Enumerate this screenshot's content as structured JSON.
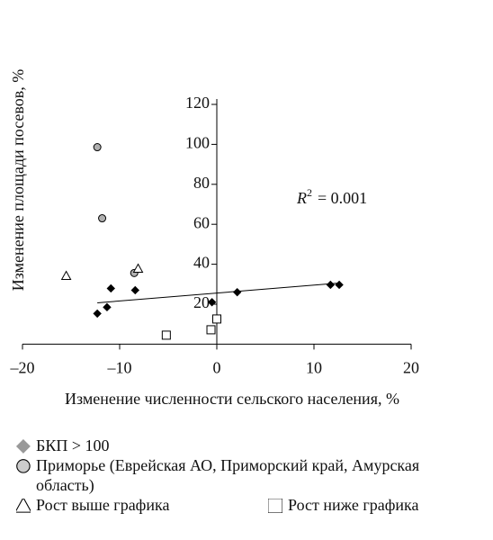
{
  "chart_data": {
    "type": "scatter",
    "ylabel": "Изменение площади посевов, %",
    "xlabel": "Изменение численности сельского населения, %",
    "xlim": [
      -20,
      20
    ],
    "ylim": [
      0,
      120
    ],
    "xticks": [
      {
        "value": -20,
        "label": "–20"
      },
      {
        "value": -10,
        "label": "–10"
      },
      0,
      10,
      20
    ],
    "yticks": [
      20,
      40,
      60,
      80,
      100,
      120
    ],
    "annotation": {
      "base": "R",
      "sup": "2",
      "rest": "= 0.001"
    },
    "trendline": {
      "x": [
        -12.3,
        12.6
      ],
      "y": [
        20.7,
        30.6
      ]
    },
    "series": [
      {
        "name": "БКП > 100",
        "marker": "diamond",
        "color": "#000000",
        "x": [
          -12.3,
          -11.3,
          -10.9,
          -8.4,
          -0.5,
          2.1,
          11.7,
          12.6
        ],
        "y": [
          15.3,
          18.5,
          27.9,
          27,
          21,
          26,
          29.7,
          29.7
        ]
      },
      {
        "name": "Приморье (Еврейская АО, Приморский край, Амурская область)",
        "marker": "circle",
        "color": "#b0b0b0",
        "x": [
          -12.3,
          -11.8,
          -8.5
        ],
        "y": [
          98.6,
          63,
          35.6
        ]
      },
      {
        "name": "Рост выше графика",
        "marker": "triangle",
        "color": "#ffffff",
        "x": [
          -15.5,
          -8.1
        ],
        "y": [
          34.2,
          37.8
        ]
      },
      {
        "name": "Рост ниже графика",
        "marker": "square",
        "color": "#ffffff",
        "x": [
          -5.2,
          -0.6,
          0
        ],
        "y": [
          4.5,
          7.2,
          12.6
        ]
      }
    ]
  }
}
